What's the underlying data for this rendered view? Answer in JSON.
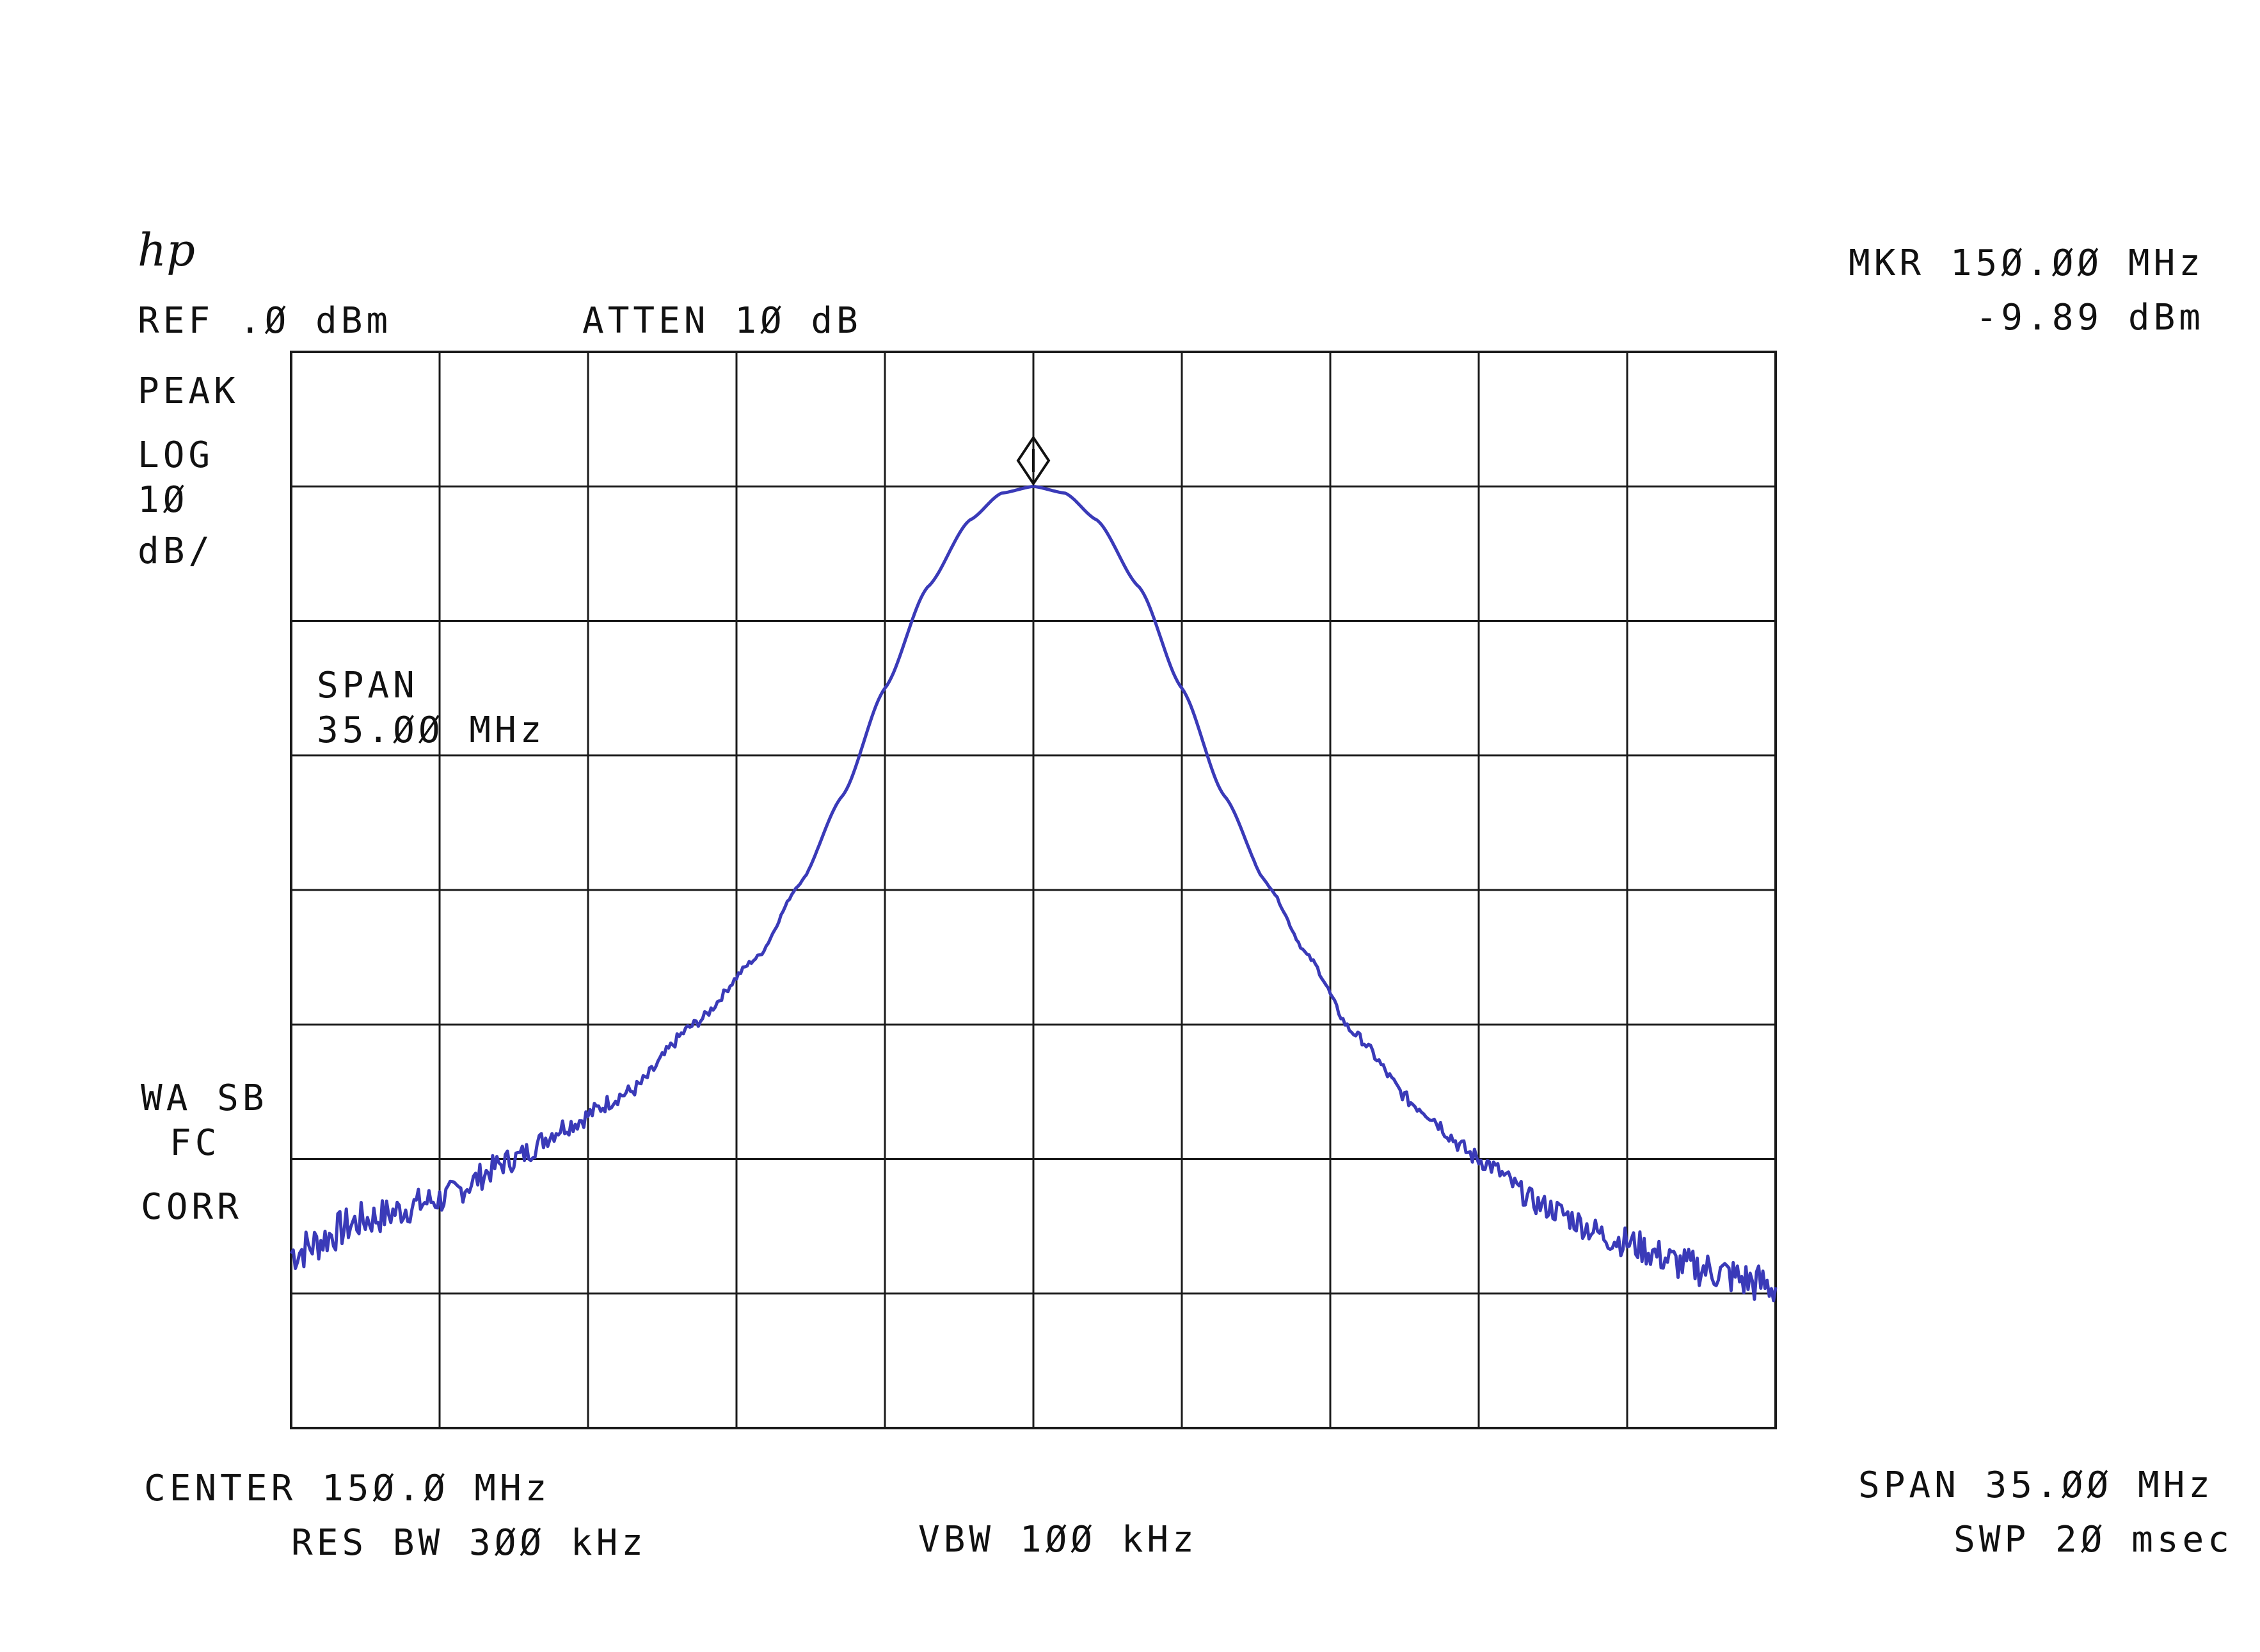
{
  "logo_text": "hp",
  "header": {
    "ref": "REF .Ø dBm",
    "atten": "ATTEN 1Ø dB",
    "mkr_freq": "MKR 15Ø.ØØ MHz",
    "mkr_level": "-9.89 dBm"
  },
  "side": {
    "detector": "PEAK",
    "scale_1": "LOG",
    "scale_2": "1Ø",
    "scale_3": "dB/",
    "flags_1": "WA SB",
    "flags_2": "FC",
    "flags_3": "CORR"
  },
  "inset": {
    "span_label": "SPAN",
    "span_value": "35.ØØ MHz"
  },
  "footer": {
    "center": "CENTER 15Ø.Ø MHz",
    "span": "SPAN 35.ØØ MHz",
    "res_bw": "RES BW 3ØØ kHz",
    "vbw": "VBW 1ØØ kHz",
    "swp": "SWP 2Ø msec"
  },
  "colors": {
    "trace": "#3a3ab8",
    "grid": "#1a1a1a"
  },
  "chart_data": {
    "type": "line",
    "x_unit": "MHz",
    "y_unit": "dBm",
    "xlim": [
      132.5,
      167.5
    ],
    "ylim": [
      -80,
      0
    ],
    "grid": true,
    "marker": {
      "x": 150.0,
      "y": -9.89
    },
    "series": [
      {
        "x": [
          132.5,
          134.25,
          136.0,
          137.75,
          139.0,
          140.5,
          142.0,
          143.5,
          144.5,
          145.5,
          146.5,
          147.5,
          148.5,
          149.25,
          150.0,
          150.75,
          151.5,
          152.5,
          153.5,
          154.5,
          155.5,
          156.5,
          157.5,
          159.0,
          160.5,
          162.0,
          163.75,
          165.5,
          167.5
        ],
        "y": [
          -67.0,
          -64.5,
          -63.0,
          -60.0,
          -57.5,
          -55.0,
          -50.0,
          -45.0,
          -39.5,
          -33.0,
          -25.0,
          -17.5,
          -12.5,
          -10.5,
          -10.0,
          -10.5,
          -12.5,
          -17.5,
          -25.0,
          -33.0,
          -39.5,
          -45.0,
          -50.5,
          -56.0,
          -60.0,
          -63.5,
          -66.0,
          -68.0,
          -69.5
        ]
      }
    ]
  }
}
